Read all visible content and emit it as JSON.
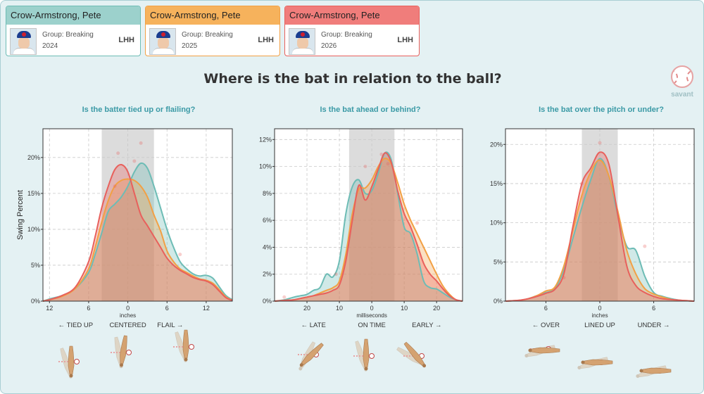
{
  "players": [
    {
      "name": "Crow-Armstrong, Pete",
      "group": "Group: Breaking",
      "season": "2024",
      "hand": "LHH",
      "color": "#6dbcb5",
      "header_bg": "#9cd1cc"
    },
    {
      "name": "Crow-Armstrong, Pete",
      "group": "Group: Breaking",
      "season": "2025",
      "hand": "LHH",
      "color": "#f2a044",
      "header_bg": "#f6b25c"
    },
    {
      "name": "Crow-Armstrong, Pete",
      "group": "Group: Breaking",
      "season": "2026",
      "hand": "LHH",
      "color": "#e8605c",
      "header_bg": "#f07d7b"
    }
  ],
  "title": "Where is the bat in relation to the ball?",
  "logo_text": "savant",
  "colors": {
    "frame_bg": "#e4f1f3",
    "question": "#3b9aa6",
    "shade": "#dcdcdc",
    "bat": "#d4a271"
  },
  "chart_data": [
    {
      "type": "area",
      "question": "Is the batter tied up or flailing?",
      "ylabel": "Swing Percent",
      "xlabel": "inches",
      "x_ticks": [
        {
          "v": -12,
          "label": "12"
        },
        {
          "v": -6,
          "label": "6"
        },
        {
          "v": 0,
          "label": "0"
        },
        {
          "v": 6,
          "label": "6"
        },
        {
          "v": 12,
          "label": "12"
        }
      ],
      "y_ticks": [
        0,
        5,
        10,
        15,
        20
      ],
      "y_format": "%",
      "xlim": [
        -13,
        16
      ],
      "ylim": [
        0,
        24
      ],
      "shade": [
        -4,
        4
      ],
      "zones": [
        {
          "v": -8,
          "label": "← TIED UP"
        },
        {
          "v": 0,
          "label": "CENTERED"
        },
        {
          "v": 6.5,
          "label": "FLAIL →"
        }
      ],
      "series": [
        {
          "season": "2024",
          "x": [
            -13,
            -12,
            -10,
            -8,
            -6,
            -5,
            -4,
            -3,
            -2,
            -1,
            0,
            1,
            2,
            3,
            4,
            5,
            6,
            7,
            8,
            9,
            10,
            11,
            12,
            13,
            14,
            15,
            16
          ],
          "y": [
            0,
            0.3,
            0.8,
            1.8,
            4,
            6.5,
            9.5,
            12.5,
            13.5,
            14.5,
            16,
            18,
            19.2,
            18.5,
            16,
            13,
            10,
            7.5,
            5.5,
            4.5,
            3.8,
            3.5,
            3.6,
            3.2,
            2,
            0.8,
            0.2
          ]
        },
        {
          "season": "2025",
          "x": [
            -13,
            -12,
            -10,
            -8,
            -6,
            -5,
            -4,
            -3,
            -2,
            -1,
            0,
            1,
            2,
            3,
            4,
            5,
            6,
            7,
            8,
            9,
            10,
            11,
            12,
            13,
            14,
            15,
            16
          ],
          "y": [
            0,
            0.2,
            0.7,
            1.8,
            4.5,
            7.5,
            11,
            14,
            16,
            16.8,
            17,
            16.8,
            16,
            14.5,
            12,
            9.8,
            7,
            5.5,
            4.5,
            4,
            3.5,
            3.1,
            2.9,
            2.5,
            1.6,
            0.6,
            0.1
          ]
        },
        {
          "season": "2026",
          "x": [
            -13,
            -12,
            -10,
            -8,
            -6,
            -5,
            -4,
            -3,
            -2,
            -1,
            0,
            1,
            2,
            3,
            4,
            5,
            6,
            7,
            8,
            9,
            10,
            11,
            12,
            13,
            14,
            15,
            16
          ],
          "y": [
            0,
            0.2,
            0.8,
            2,
            5.5,
            9,
            13,
            16,
            18.3,
            19,
            18,
            15,
            12,
            10.5,
            9,
            7.5,
            6,
            5,
            4.3,
            3.8,
            3.3,
            3,
            2.8,
            2.3,
            1.4,
            0.5,
            0.1
          ]
        }
      ],
      "points": [
        {
          "x": -1.5,
          "y": 20.6
        },
        {
          "x": 2,
          "y": 22
        },
        {
          "x": -2,
          "y": 16
        },
        {
          "x": 1,
          "y": 19.5
        },
        {
          "x": 8,
          "y": 6.5
        }
      ]
    },
    {
      "type": "area",
      "question": "Is the bat ahead or behind?",
      "ylabel": "",
      "xlabel": "milliseconds",
      "x_ticks": [
        {
          "v": -20,
          "label": "20"
        },
        {
          "v": -10,
          "label": "10"
        },
        {
          "v": 0,
          "label": "0"
        },
        {
          "v": 10,
          "label": "10"
        },
        {
          "v": 20,
          "label": "20"
        }
      ],
      "y_ticks": [
        0,
        2,
        4,
        6,
        8,
        10,
        12
      ],
      "y_format": "%",
      "xlim": [
        -30,
        28
      ],
      "ylim": [
        0,
        12.8
      ],
      "shade": [
        -7,
        7
      ],
      "zones": [
        {
          "v": -18,
          "label": "← LATE"
        },
        {
          "v": 0,
          "label": "ON TIME"
        },
        {
          "v": 17,
          "label": "EARLY →"
        }
      ],
      "series": [
        {
          "season": "2024",
          "x": [
            -30,
            -27,
            -24,
            -22,
            -20,
            -18,
            -16,
            -14,
            -12,
            -10,
            -8,
            -6,
            -4,
            -2,
            0,
            2,
            4,
            6,
            8,
            10,
            12,
            14,
            16,
            18,
            20,
            22,
            24,
            26,
            28
          ],
          "y": [
            0,
            0.1,
            0.3,
            0.4,
            0.5,
            0.8,
            1,
            2,
            1.8,
            3,
            6.5,
            8.5,
            9,
            8,
            8.2,
            9.5,
            11,
            10.5,
            8,
            5.5,
            5,
            3.5,
            1.5,
            1,
            0.9,
            0.6,
            0.3,
            0.1,
            0
          ]
        },
        {
          "season": "2025",
          "x": [
            -30,
            -27,
            -24,
            -22,
            -20,
            -18,
            -16,
            -14,
            -12,
            -10,
            -8,
            -6,
            -4,
            -2,
            0,
            2,
            4,
            6,
            8,
            10,
            12,
            14,
            16,
            18,
            20,
            22,
            24,
            26,
            28
          ],
          "y": [
            0,
            0.05,
            0.1,
            0.2,
            0.3,
            0.4,
            0.6,
            0.8,
            1,
            1.5,
            3.5,
            6.5,
            8.3,
            8.4,
            9,
            10,
            10.6,
            10.2,
            8.8,
            7.2,
            6,
            5,
            4,
            3,
            2,
            1.1,
            0.5,
            0.1,
            0
          ]
        },
        {
          "season": "2026",
          "x": [
            -30,
            -27,
            -24,
            -22,
            -20,
            -18,
            -16,
            -14,
            -12,
            -10,
            -8,
            -6,
            -4,
            -2,
            0,
            2,
            4,
            6,
            8,
            10,
            12,
            14,
            16,
            18,
            20,
            22,
            24,
            26,
            28
          ],
          "y": [
            0,
            0.05,
            0.1,
            0.2,
            0.3,
            0.4,
            0.5,
            0.6,
            0.8,
            1.2,
            3,
            6,
            8.6,
            7.5,
            8.5,
            9.8,
            11,
            10.3,
            8.2,
            6.5,
            5.5,
            4.2,
            2.8,
            2,
            1.5,
            0.9,
            0.4,
            0.1,
            0
          ]
        }
      ],
      "points": [
        {
          "x": -2,
          "y": 10
        },
        {
          "x": 3,
          "y": 10.9
        },
        {
          "x": 5,
          "y": 10.2
        },
        {
          "x": 14,
          "y": 5.8
        },
        {
          "x": -11,
          "y": 2
        },
        {
          "x": -27,
          "y": 0.3
        }
      ]
    },
    {
      "type": "area",
      "question": "Is the bat over the pitch or under?",
      "ylabel": "",
      "xlabel": "inches",
      "x_ticks": [
        {
          "v": -6,
          "label": "6"
        },
        {
          "v": 0,
          "label": "0"
        },
        {
          "v": 6,
          "label": "6"
        }
      ],
      "y_ticks": [
        0,
        5,
        10,
        15,
        20
      ],
      "y_format": "%",
      "xlim": [
        -10.5,
        10.5
      ],
      "ylim": [
        0,
        22
      ],
      "shade": [
        -2,
        2
      ],
      "zones": [
        {
          "v": -6,
          "label": "← OVER"
        },
        {
          "v": 0,
          "label": "LINED UP"
        },
        {
          "v": 6,
          "label": "UNDER →"
        }
      ],
      "series": [
        {
          "season": "2024",
          "x": [
            -10.5,
            -9,
            -8,
            -7,
            -6,
            -5,
            -4,
            -3,
            -2,
            -1,
            0,
            1,
            2,
            3,
            4,
            5,
            6,
            7,
            8,
            9,
            10.5
          ],
          "y": [
            0,
            0.1,
            0.3,
            0.7,
            1.1,
            1.6,
            4,
            8,
            12,
            15.5,
            18.2,
            16,
            11,
            7,
            6.5,
            3.2,
            1.1,
            0.6,
            0.3,
            0.1,
            0
          ]
        },
        {
          "season": "2025",
          "x": [
            -10.5,
            -9,
            -8,
            -7,
            -6,
            -5,
            -4,
            -3,
            -2,
            -1,
            0,
            1,
            2,
            3,
            4,
            5,
            6,
            7,
            8,
            9,
            10.5
          ],
          "y": [
            0,
            0.1,
            0.3,
            0.7,
            1.3,
            1.8,
            4.5,
            9,
            13.5,
            16.5,
            18,
            16,
            11.5,
            6.5,
            3.5,
            1.6,
            0.9,
            0.5,
            0.2,
            0.1,
            0
          ]
        },
        {
          "season": "2026",
          "x": [
            -10.5,
            -9,
            -8,
            -7,
            -6,
            -5,
            -4,
            -3,
            -2,
            -1,
            0,
            1,
            2,
            3,
            4,
            5,
            6,
            7,
            8,
            9,
            10.5
          ],
          "y": [
            0,
            0.1,
            0.3,
            0.6,
            1,
            1.5,
            3.5,
            9.5,
            15,
            17,
            19,
            17.5,
            11,
            4.5,
            2,
            1.1,
            0.6,
            0.3,
            0.2,
            0.1,
            0
          ]
        }
      ],
      "points": [
        {
          "x": 0,
          "y": 20.2
        },
        {
          "x": -2,
          "y": 15
        },
        {
          "x": 5,
          "y": 7
        },
        {
          "x": -4,
          "y": 3
        }
      ]
    }
  ]
}
